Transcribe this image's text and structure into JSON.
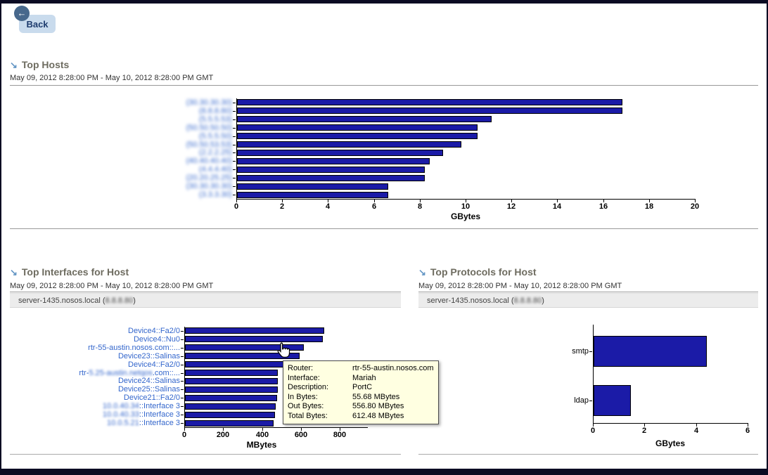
{
  "back_button": {
    "label": "Back"
  },
  "colors": {
    "bar_fill": "#1B1BA7",
    "bar_border": "#000000",
    "link_blue": "#3366CC",
    "header_text": "#6E6C60",
    "header_arrow": "#6295C4",
    "tooltip_bg": "#FFFFE1",
    "host_box_bg": "#ECECEC",
    "back_button_bg": "#C9DBED",
    "frame": "#0B0B23"
  },
  "sections": {
    "hosts": {
      "title": "Top Hosts",
      "date_range": "May 09, 2012 8:28:00 PM - May 10, 2012 8:28:00 PM GMT"
    },
    "interfaces": {
      "title": "Top Interfaces for Host",
      "date_range": "May 09, 2012 8:28:00 PM - May 10, 2012 8:28:00 PM GMT",
      "host_prefix": "server-1435.nosos.local (",
      "host_ip": "8.8.8.80",
      "host_suffix": ")"
    },
    "protocols": {
      "title": "Top Protocols for Host",
      "date_range": "May 09, 2012 8:28:00 PM - May 10, 2012 8:28:00 PM GMT",
      "host_prefix": "server-1435.nosos.local (",
      "host_ip": "8.8.8.80",
      "host_suffix": ")"
    }
  },
  "chart_data": [
    {
      "id": "hosts",
      "type": "bar",
      "orientation": "horizontal",
      "title": "Top Hosts",
      "xlabel": "GBytes",
      "xlim": [
        0,
        20
      ],
      "xticks": [
        0,
        2,
        4,
        6,
        8,
        10,
        12,
        14,
        16,
        18,
        20
      ],
      "grid": false,
      "labels_clickable": true,
      "categories": [
        [
          {
            "text": "(30.30.30.30)",
            "blur": true
          }
        ],
        [
          {
            "text": "(8.8.8.80)",
            "blur": true
          }
        ],
        [
          {
            "text": "(5.5.5.53)",
            "blur": true
          }
        ],
        [
          {
            "text": "(50.50.50.50)",
            "blur": true
          }
        ],
        [
          {
            "text": "(5.5.5.50)",
            "blur": true
          }
        ],
        [
          {
            "text": "(50.50.53.53)",
            "blur": true
          }
        ],
        [
          {
            "text": "(2.2.2.25)",
            "blur": true
          }
        ],
        [
          {
            "text": "(40.40.40.40)",
            "blur": true
          }
        ],
        [
          {
            "text": "(4.4.4.40)",
            "blur": true
          }
        ],
        [
          {
            "text": "(20.20.25.25)",
            "blur": true
          }
        ],
        [
          {
            "text": "(30.30.30.30)",
            "blur": true
          }
        ],
        [
          {
            "text": "(3.3.3.30)",
            "blur": true
          }
        ]
      ],
      "values": [
        16.8,
        16.8,
        11.1,
        10.5,
        10.5,
        9.8,
        9.0,
        8.4,
        8.2,
        8.2,
        6.6,
        6.6
      ]
    },
    {
      "id": "interfaces",
      "type": "bar",
      "orientation": "horizontal",
      "title": "Top Interfaces for Host",
      "xlabel": "MBytes",
      "xlim": [
        0,
        800
      ],
      "xticks": [
        0,
        200,
        400,
        600,
        800
      ],
      "grid": false,
      "labels_clickable": true,
      "categories": [
        [
          {
            "text": "Device4::Fa2/0",
            "blur": false
          }
        ],
        [
          {
            "text": "Device4::Nu0",
            "blur": false
          }
        ],
        [
          {
            "text": "rtr-55-austin.nosos.com::...",
            "blur": false
          }
        ],
        [
          {
            "text": "Device23::Salinas",
            "blur": false
          }
        ],
        [
          {
            "text": "Device4::Fa2/0",
            "blur": false
          }
        ],
        [
          {
            "text": "rtr-",
            "blur": false
          },
          {
            "text": "5.25-austin.netqos",
            "blur": true
          },
          {
            "text": ".com::...",
            "blur": false
          }
        ],
        [
          {
            "text": "Device24::Salinas",
            "blur": false
          }
        ],
        [
          {
            "text": "Device25::Salinas",
            "blur": false
          }
        ],
        [
          {
            "text": "Device21::Fa2/0",
            "blur": false
          }
        ],
        [
          {
            "text": "10.0.40.34",
            "blur": true
          },
          {
            "text": "::Interface 3",
            "blur": false
          }
        ],
        [
          {
            "text": "10.0.40.33",
            "blur": true
          },
          {
            "text": "::Interface 3",
            "blur": false
          }
        ],
        [
          {
            "text": "10.0.5.21",
            "blur": true
          },
          {
            "text": "::Interface 3",
            "blur": false
          }
        ]
      ],
      "values": [
        715,
        710,
        612.48,
        588,
        540,
        478,
        477,
        477,
        474,
        468,
        461,
        455
      ]
    },
    {
      "id": "protocols",
      "type": "bar",
      "orientation": "horizontal",
      "title": "Top Protocols for Host",
      "xlabel": "GBytes",
      "xlim": [
        0,
        6
      ],
      "xticks": [
        0,
        2,
        4,
        6
      ],
      "grid": false,
      "labels_clickable": false,
      "categories": [
        [
          {
            "text": "smtp",
            "blur": false
          }
        ],
        [
          {
            "text": "ldap",
            "blur": false
          }
        ]
      ],
      "values": [
        4.4,
        1.45
      ]
    }
  ],
  "tooltip": {
    "rows": [
      {
        "label": "Router:",
        "value": "rtr-55-austin.nosos.com"
      },
      {
        "label": "Interface:",
        "value": "Mariah"
      },
      {
        "label": "Description:",
        "value": "PortC"
      },
      {
        "label": "In Bytes:",
        "value": "55.68 MBytes"
      },
      {
        "label": "Out Bytes:",
        "value": "556.80 MBytes"
      },
      {
        "label": "Total Bytes:",
        "value": "612.48 MBytes"
      }
    ]
  }
}
